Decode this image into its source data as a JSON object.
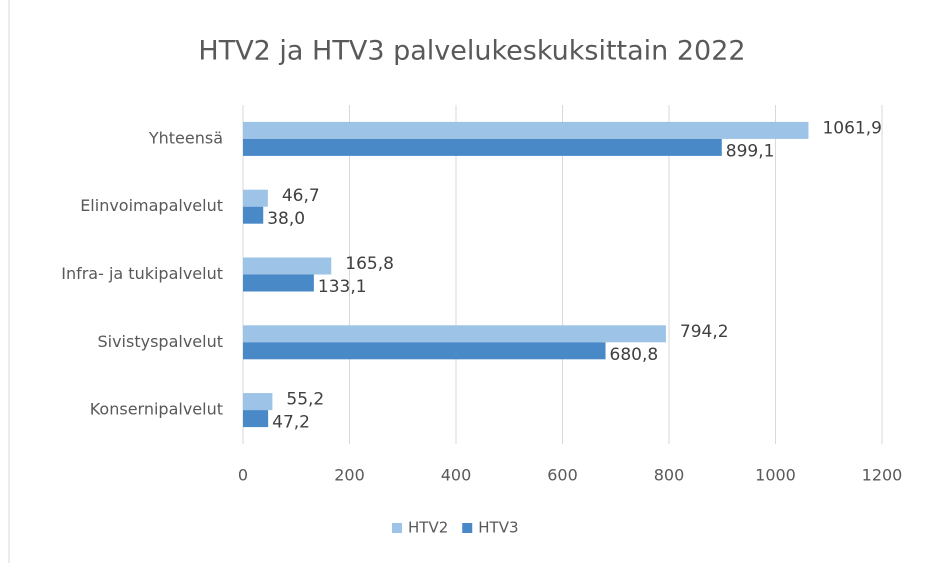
{
  "chart_data": {
    "type": "hbar",
    "title": "HTV2 ja HTV3 palvelukeskuksittain 2022",
    "categories": [
      "Yhteensä",
      "Elinvoimapalvelut",
      "Infra- ja tukipalvelut",
      "Sivistyspalvelut",
      "Konsernipalvelut"
    ],
    "series": [
      {
        "name": "HTV2",
        "color": "#9dc3e6",
        "values": [
          1061.9,
          46.7,
          165.8,
          794.2,
          55.2
        ],
        "value_labels": [
          "1061,9",
          "46,7",
          "165,8",
          "794,2",
          "55,2"
        ]
      },
      {
        "name": "HTV3",
        "color": "#4a89c8",
        "values": [
          899.1,
          38.0,
          133.1,
          680.8,
          47.2
        ],
        "value_labels": [
          "899,1",
          "38,0",
          "133,1",
          "680,8",
          "47,2"
        ]
      }
    ],
    "xlim": [
      0,
      1200
    ],
    "xticks": [
      0,
      200,
      400,
      600,
      800,
      1000,
      1200
    ],
    "grid": true,
    "legend": "bottom"
  }
}
